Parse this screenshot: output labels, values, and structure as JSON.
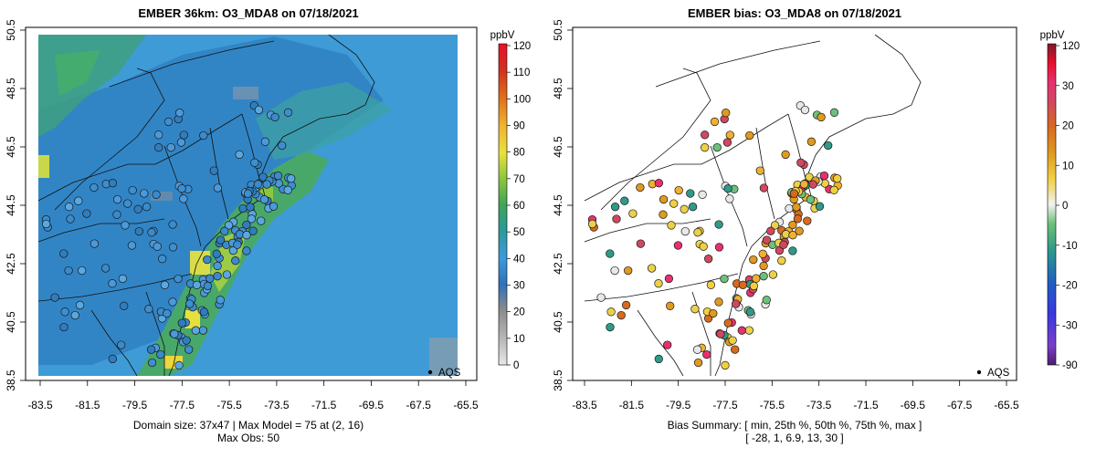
{
  "left_panel": {
    "title": "EMBER 36km: O3_MDA8 on 07/18/2021",
    "caption_line1": "Domain size: 37x47 | Max Model = 75 at (2, 16)",
    "caption_line2": "Max Obs: 50",
    "network_label": "AQS",
    "colorbar": {
      "unit": "ppbV",
      "ticks": [
        "120",
        "110",
        "100",
        "90",
        "80",
        "70",
        "60",
        "50",
        "40",
        "30",
        "20",
        "10",
        "0"
      ],
      "colors": [
        "#E8E8E8",
        "#B8B8B8",
        "#8C8C8C",
        "#2F6FB8",
        "#3C9BDC",
        "#2A9A9A",
        "#3FA655",
        "#8CC63E",
        "#E9E23C",
        "#F0B030",
        "#E0701A",
        "#D03020",
        "#E8102A"
      ]
    }
  },
  "right_panel": {
    "title": "EMBER bias: O3_MDA8 on 07/18/2021",
    "caption_line1": "Bias Summary: [ min, 25th %, 50th %, 75th %, max ]",
    "caption_line2": "[ -28,  1,  6.9,  13,  30 ]",
    "network_label": "AQS",
    "colorbar": {
      "unit": "ppbV",
      "ticks": [
        "120",
        "30",
        "20",
        "10",
        "0",
        "-10",
        "-20",
        "-30",
        "-90"
      ],
      "colors": [
        "#4B1E6B",
        "#7B3FC8",
        "#3838E0",
        "#2060C0",
        "#2F9A8A",
        "#6CC07A",
        "#F2F2F2",
        "#F0D040",
        "#E09A20",
        "#D86A20",
        "#D04860",
        "#E83070",
        "#E8102A",
        "#7A1A2A"
      ]
    }
  },
  "axes": {
    "x_ticks": [
      "-83.5",
      "-81.5",
      "-79.5",
      "-77.5",
      "-75.5",
      "-73.5",
      "-71.5",
      "-69.5",
      "-67.5",
      "-65.5"
    ],
    "y_ticks": [
      "38.5",
      "40.5",
      "42.5",
      "44.5",
      "46.5",
      "48.5",
      "50.5"
    ],
    "lon_range": [
      -84.5,
      -65.0
    ],
    "lat_range": [
      38.3,
      50.6
    ]
  }
}
